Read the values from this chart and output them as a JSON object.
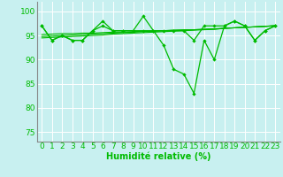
{
  "background_color": "#c8f0f0",
  "grid_color": "#ffffff",
  "line_color": "#00bb00",
  "xlabel": "Humidité relative (%)",
  "tick_fontsize": 6.5,
  "ylim": [
    73,
    102
  ],
  "xlim": [
    -0.5,
    23.5
  ],
  "yticks": [
    75,
    80,
    85,
    90,
    95,
    100
  ],
  "xticks": [
    0,
    1,
    2,
    3,
    4,
    5,
    6,
    7,
    8,
    9,
    10,
    11,
    12,
    13,
    14,
    15,
    16,
    17,
    18,
    19,
    20,
    21,
    22,
    23
  ],
  "series_jagged1": [
    97,
    94,
    95,
    94,
    94,
    96,
    98,
    96,
    96,
    96,
    99,
    96,
    96,
    96,
    96,
    94,
    97,
    97,
    97,
    98,
    97,
    94,
    96,
    97
  ],
  "series_jagged2": [
    97,
    94,
    95,
    94,
    94,
    96,
    97,
    96,
    96,
    96,
    96,
    96,
    93,
    88,
    87,
    83,
    94,
    90,
    97,
    98,
    97,
    94,
    96,
    97
  ],
  "series_trend1": [
    94.5,
    94.6,
    94.7,
    94.8,
    94.9,
    95.0,
    95.1,
    95.3,
    95.4,
    95.5,
    95.6,
    95.7,
    95.8,
    95.9,
    96.0,
    96.1,
    96.2,
    96.3,
    96.5,
    96.6,
    96.7,
    96.8,
    96.9,
    97.0
  ],
  "series_trend2": [
    94.8,
    94.9,
    95.0,
    95.1,
    95.2,
    95.3,
    95.4,
    95.5,
    95.6,
    95.7,
    95.8,
    95.9,
    96.0,
    96.1,
    96.2,
    96.2,
    96.3,
    96.4,
    96.5,
    96.6,
    96.7,
    96.8,
    96.9,
    97.0
  ],
  "series_trend3": [
    95.2,
    95.3,
    95.4,
    95.4,
    95.5,
    95.5,
    95.6,
    95.7,
    95.7,
    95.8,
    95.9,
    95.9,
    96.0,
    96.1,
    96.1,
    96.2,
    96.3,
    96.3,
    96.5,
    96.6,
    96.7,
    96.8,
    96.9,
    97.1
  ]
}
